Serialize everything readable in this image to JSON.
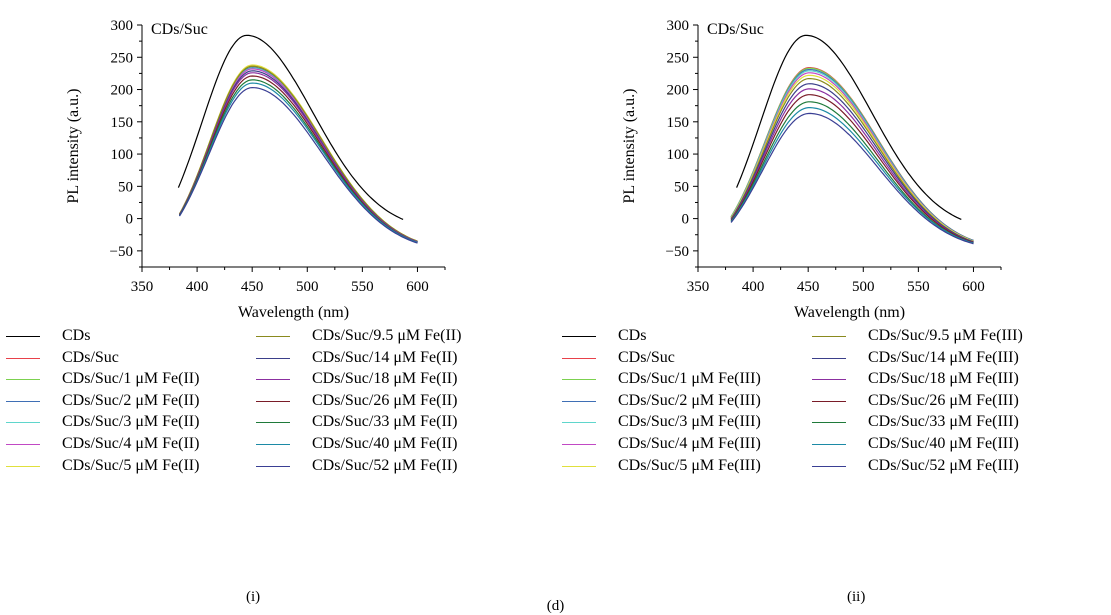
{
  "figure_label": "(d)",
  "chart_data": [
    {
      "type": "line",
      "panel_label": "(i)",
      "annotation": "CDs/Suc",
      "xlabel": "Wavelength (nm)",
      "ylabel": "PL intensity (a.u.)",
      "xlim": [
        350,
        625
      ],
      "ylim": [
        -75,
        300
      ],
      "xticks": [
        350,
        400,
        450,
        500,
        550,
        600
      ],
      "yticks": [
        -50,
        0,
        50,
        100,
        150,
        200,
        250,
        300
      ],
      "grid": false,
      "legend_position": "bottom",
      "series": [
        {
          "name": "CDs",
          "color": "#000000",
          "x_start": 383,
          "x_end": 588,
          "peak_x": 445,
          "peak": 284,
          "y_start": 48,
          "y_end": -2
        },
        {
          "name": "CDs/Suc",
          "color": "#e8414a",
          "x_start": 384,
          "x_end": 600,
          "peak_x": 450,
          "peak": 237,
          "y_start": 7,
          "y_end": -36
        },
        {
          "name": "CDs/Suc/1 μM Fe(II)",
          "color": "#7cd14f",
          "x_start": 384,
          "x_end": 600,
          "peak_x": 450,
          "peak": 236,
          "y_start": 7,
          "y_end": -36
        },
        {
          "name": "CDs/Suc/2 μM Fe(II)",
          "color": "#3f6fb5",
          "x_start": 384,
          "x_end": 600,
          "peak_x": 450,
          "peak": 234,
          "y_start": 6,
          "y_end": -36
        },
        {
          "name": "CDs/Suc/3 μM Fe(II)",
          "color": "#5fd6cc",
          "x_start": 384,
          "x_end": 600,
          "peak_x": 450,
          "peak": 233,
          "y_start": 6,
          "y_end": -36
        },
        {
          "name": "CDs/Suc/4 μM Fe(II)",
          "color": "#c149c4",
          "x_start": 384,
          "x_end": 600,
          "peak_x": 450,
          "peak": 232,
          "y_start": 6,
          "y_end": -36
        },
        {
          "name": "CDs/Suc/5 μM Fe(II)",
          "color": "#e0e03c",
          "x_start": 384,
          "x_end": 600,
          "peak_x": 450,
          "peak": 238,
          "y_start": 7,
          "y_end": -35
        },
        {
          "name": "CDs/Suc/9.5 μM Fe(II)",
          "color": "#8a8a1e",
          "x_start": 384,
          "x_end": 600,
          "peak_x": 450,
          "peak": 236,
          "y_start": 7,
          "y_end": -35
        },
        {
          "name": "CDs/Suc/14 μM Fe(II)",
          "color": "#3b3f8a",
          "x_start": 384,
          "x_end": 600,
          "peak_x": 450,
          "peak": 229,
          "y_start": 6,
          "y_end": -36
        },
        {
          "name": "CDs/Suc/18 μM Fe(II)",
          "color": "#8b2fa0",
          "x_start": 384,
          "x_end": 600,
          "peak_x": 450,
          "peak": 226,
          "y_start": 6,
          "y_end": -36
        },
        {
          "name": "CDs/Suc/26 μM Fe(II)",
          "color": "#7a1c28",
          "x_start": 384,
          "x_end": 600,
          "peak_x": 450,
          "peak": 221,
          "y_start": 5,
          "y_end": -37
        },
        {
          "name": "CDs/Suc/33 μM Fe(II)",
          "color": "#1f7a3a",
          "x_start": 384,
          "x_end": 600,
          "peak_x": 450,
          "peak": 215,
          "y_start": 5,
          "y_end": -37
        },
        {
          "name": "CDs/Suc/40 μM Fe(II)",
          "color": "#1c8aa6",
          "x_start": 384,
          "x_end": 600,
          "peak_x": 450,
          "peak": 210,
          "y_start": 4,
          "y_end": -37
        },
        {
          "name": "CDs/Suc/52 μM Fe(II)",
          "color": "#3a3f94",
          "x_start": 384,
          "x_end": 600,
          "peak_x": 450,
          "peak": 203,
          "y_start": 4,
          "y_end": -38
        }
      ]
    },
    {
      "type": "line",
      "panel_label": "(ii)",
      "annotation": "CDs/Suc",
      "xlabel": "Wavelength (nm)",
      "ylabel": "PL intensity (a.u.)",
      "xlim": [
        350,
        625
      ],
      "ylim": [
        -75,
        300
      ],
      "xticks": [
        350,
        400,
        450,
        500,
        550,
        600
      ],
      "yticks": [
        -50,
        0,
        50,
        100,
        150,
        200,
        250,
        300
      ],
      "grid": false,
      "legend_position": "bottom",
      "series": [
        {
          "name": "CDs",
          "color": "#000000",
          "x_start": 385,
          "x_end": 590,
          "peak_x": 448,
          "peak": 284,
          "y_start": 48,
          "y_end": -2
        },
        {
          "name": "CDs/Suc",
          "color": "#e8414a",
          "x_start": 380,
          "x_end": 600,
          "peak_x": 451,
          "peak": 234,
          "y_start": 3,
          "y_end": -34
        },
        {
          "name": "CDs/Suc/1 μM Fe(III)",
          "color": "#7cd14f",
          "x_start": 380,
          "x_end": 600,
          "peak_x": 451,
          "peak": 233,
          "y_start": 3,
          "y_end": -34
        },
        {
          "name": "CDs/Suc/2 μM Fe(III)",
          "color": "#3f6fb5",
          "x_start": 380,
          "x_end": 600,
          "peak_x": 451,
          "peak": 231,
          "y_start": 2,
          "y_end": -34
        },
        {
          "name": "CDs/Suc/3 μM Fe(III)",
          "color": "#5fd6cc",
          "x_start": 380,
          "x_end": 600,
          "peak_x": 451,
          "peak": 229,
          "y_start": 2,
          "y_end": -35
        },
        {
          "name": "CDs/Suc/4 μM Fe(III)",
          "color": "#c149c4",
          "x_start": 380,
          "x_end": 600,
          "peak_x": 451,
          "peak": 226,
          "y_start": 1,
          "y_end": -35
        },
        {
          "name": "CDs/Suc/5 μM Fe(III)",
          "color": "#e0e03c",
          "x_start": 380,
          "x_end": 600,
          "peak_x": 451,
          "peak": 222,
          "y_start": 1,
          "y_end": -35
        },
        {
          "name": "CDs/Suc/9.5 μM Fe(III)",
          "color": "#8a8a1e",
          "x_start": 380,
          "x_end": 600,
          "peak_x": 451,
          "peak": 217,
          "y_start": 0,
          "y_end": -36
        },
        {
          "name": "CDs/Suc/14 μM Fe(III)",
          "color": "#3b3f8a",
          "x_start": 380,
          "x_end": 600,
          "peak_x": 451,
          "peak": 209,
          "y_start": -1,
          "y_end": -36
        },
        {
          "name": "CDs/Suc/18 μM Fe(III)",
          "color": "#8b2fa0",
          "x_start": 380,
          "x_end": 600,
          "peak_x": 451,
          "peak": 201,
          "y_start": -2,
          "y_end": -37
        },
        {
          "name": "CDs/Suc/26 μM Fe(III)",
          "color": "#7a1c28",
          "x_start": 380,
          "x_end": 600,
          "peak_x": 451,
          "peak": 192,
          "y_start": -3,
          "y_end": -37
        },
        {
          "name": "CDs/Suc/33 μM Fe(III)",
          "color": "#1f7a3a",
          "x_start": 380,
          "x_end": 600,
          "peak_x": 451,
          "peak": 181,
          "y_start": -4,
          "y_end": -38
        },
        {
          "name": "CDs/Suc/40 μM Fe(III)",
          "color": "#1c8aa6",
          "x_start": 380,
          "x_end": 600,
          "peak_x": 451,
          "peak": 172,
          "y_start": -5,
          "y_end": -38
        },
        {
          "name": "CDs/Suc/52 μM Fe(III)",
          "color": "#3a3f94",
          "x_start": 380,
          "x_end": 600,
          "peak_x": 451,
          "peak": 163,
          "y_start": -6,
          "y_end": -39
        }
      ]
    }
  ]
}
